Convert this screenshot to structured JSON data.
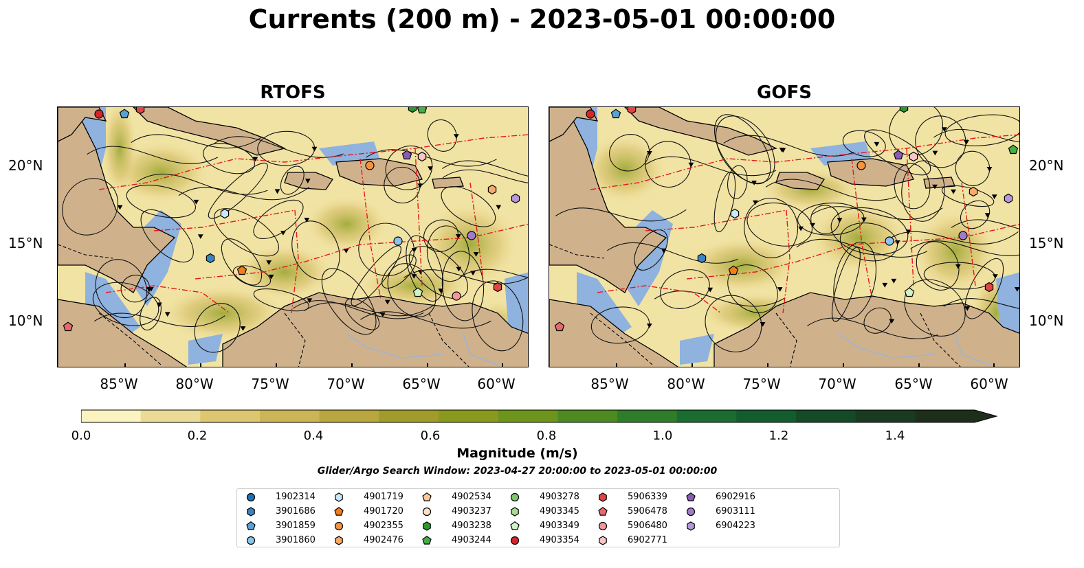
{
  "figure": {
    "title": "Currents (200 m) - 2023-05-01 00:00:00",
    "panels": [
      {
        "id": "rtofs",
        "subtitle": "RTOFS"
      },
      {
        "id": "gofs",
        "subtitle": "GOFS"
      }
    ],
    "lat_ticks": [
      "20°N",
      "15°N",
      "10°N"
    ],
    "lon_ticks": [
      "85°W",
      "80°W",
      "75°W",
      "70°W",
      "65°W",
      "60°W"
    ],
    "colorbar": {
      "label": "Magnitude (m/s)",
      "ticks": [
        "0.0",
        "0.2",
        "0.4",
        "0.6",
        "0.8",
        "1.0",
        "1.2",
        "1.4"
      ],
      "range": [
        0,
        1.5
      ],
      "extend": "max",
      "colors": [
        "#fbf4c1",
        "#ecdb97",
        "#dcc670",
        "#cdb457",
        "#b8a63e",
        "#a19b2b",
        "#8a9a1c",
        "#6e951b",
        "#4d8a22",
        "#2f7d2a",
        "#1a6c30",
        "#135c2e",
        "#154a27",
        "#1a3b22",
        "#1d2e1b"
      ]
    },
    "search_window": "Glider/Argo Search Window: 2023-04-27 20:00:00 to 2023-05-01 00:00:00",
    "colors": {
      "land": "#cfb28c",
      "ocean_shallow": "#8fb2de",
      "eez_boundary": "#e8161b",
      "border": "#000000"
    }
  },
  "legend": [
    {
      "id": "1902314",
      "marker": "circle",
      "color": "#1f6fb5"
    },
    {
      "id": "3901686",
      "marker": "hexagon",
      "color": "#3a84c4"
    },
    {
      "id": "3901859",
      "marker": "pentagon",
      "color": "#5aa2d6"
    },
    {
      "id": "3901860",
      "marker": "circle",
      "color": "#8cc4ec"
    },
    {
      "id": "4901719",
      "marker": "hexagon",
      "color": "#c9e7f8"
    },
    {
      "id": "4901720",
      "marker": "pentagon",
      "color": "#f07e1b"
    },
    {
      "id": "4902355",
      "marker": "circle",
      "color": "#f49340"
    },
    {
      "id": "4902476",
      "marker": "hexagon",
      "color": "#f8ab6a"
    },
    {
      "id": "4902534",
      "marker": "pentagon",
      "color": "#fbc99b"
    },
    {
      "id": "4903237",
      "marker": "circle",
      "color": "#fde0c5"
    },
    {
      "id": "4903238",
      "marker": "hexagon",
      "color": "#2a9a2f"
    },
    {
      "id": "4903244",
      "marker": "pentagon",
      "color": "#46ad48"
    },
    {
      "id": "4903278",
      "marker": "circle",
      "color": "#7bc76a"
    },
    {
      "id": "4903345",
      "marker": "hexagon",
      "color": "#a7dc93"
    },
    {
      "id": "4903349",
      "marker": "pentagon",
      "color": "#d3f1c6"
    },
    {
      "id": "4903354",
      "marker": "circle",
      "color": "#d62728"
    },
    {
      "id": "5906339",
      "marker": "hexagon",
      "color": "#e04447"
    },
    {
      "id": "5906478",
      "marker": "pentagon",
      "color": "#e8696c"
    },
    {
      "id": "5906480",
      "marker": "circle",
      "color": "#f0989a"
    },
    {
      "id": "6902771",
      "marker": "hexagon",
      "color": "#f8c6c6"
    },
    {
      "id": "6902916",
      "marker": "pentagon",
      "color": "#8a5bb5"
    },
    {
      "id": "6903111",
      "marker": "circle",
      "color": "#a17ac8"
    },
    {
      "id": "6904223",
      "marker": "hexagon",
      "color": "#b597da"
    }
  ]
}
